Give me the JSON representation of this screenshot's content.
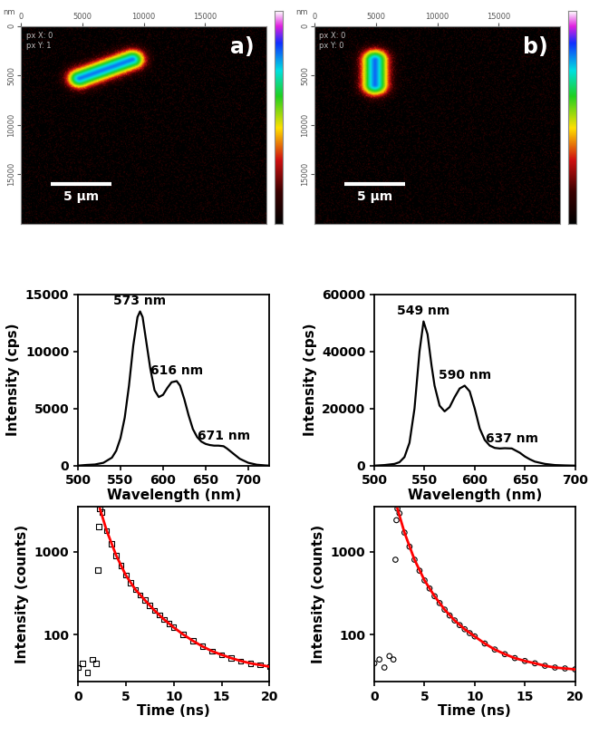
{
  "chart_data": [
    {
      "type": "image",
      "panel_label": "a)",
      "corner_label": "nm",
      "info": [
        "px X: 0",
        "px Y: 1"
      ],
      "xlim": [
        0,
        20000
      ],
      "xticks": [
        0,
        5000,
        10000,
        15000
      ],
      "ylim": [
        20000,
        0
      ],
      "yticks": [
        0,
        5000,
        10000,
        15000
      ],
      "scale_bar": {
        "label": "5 µm",
        "length": 5000
      }
    },
    {
      "type": "image",
      "panel_label": "b)",
      "corner_label": "nm",
      "info": [
        "px X: 0",
        "px Y: 0"
      ],
      "xlim": [
        0,
        20000
      ],
      "xticks": [
        0,
        5000,
        10000,
        15000
      ],
      "ylim": [
        20000,
        0
      ],
      "yticks": [
        0,
        5000,
        10000,
        15000
      ],
      "scale_bar": {
        "label": "5 µm",
        "length": 5000
      }
    },
    {
      "type": "line",
      "x_label": "Wavelength (nm)",
      "y_label": "Intensity (cps)",
      "color": "#000000",
      "x": [
        500,
        510,
        520,
        530,
        540,
        545,
        550,
        555,
        560,
        565,
        570,
        573,
        576,
        580,
        585,
        590,
        595,
        600,
        605,
        610,
        616,
        620,
        625,
        630,
        635,
        640,
        645,
        650,
        655,
        660,
        665,
        671,
        675,
        680,
        685,
        690,
        700,
        710,
        720,
        725
      ],
      "values": [
        0,
        60,
        100,
        250,
        700,
        1300,
        2400,
        4200,
        7000,
        10500,
        13000,
        13500,
        13000,
        11000,
        8500,
        6600,
        6000,
        6200,
        6800,
        7300,
        7400,
        7000,
        5800,
        4400,
        3200,
        2500,
        2100,
        1900,
        1800,
        1750,
        1750,
        1700,
        1500,
        1200,
        900,
        600,
        250,
        80,
        20,
        0
      ],
      "xlim": [
        500,
        725
      ],
      "xticks": [
        500,
        550,
        600,
        650,
        700
      ],
      "ylim": [
        0,
        15000
      ],
      "yticks": [
        0,
        5000,
        10000,
        15000
      ],
      "annotations": [
        {
          "text": "573 nm",
          "x": 573,
          "y": 13500
        },
        {
          "text": "616 nm",
          "x": 616,
          "y": 7400
        },
        {
          "text": "671 nm",
          "x": 671,
          "y": 1700
        }
      ]
    },
    {
      "type": "line",
      "x_label": "Wavelength (nm)",
      "y_label": "Intensity (cps)",
      "color": "#000000",
      "x": [
        500,
        510,
        520,
        525,
        530,
        535,
        540,
        545,
        549,
        553,
        557,
        560,
        565,
        570,
        575,
        580,
        585,
        590,
        595,
        600,
        605,
        610,
        615,
        620,
        625,
        630,
        637,
        645,
        650,
        655,
        660,
        670,
        680,
        690,
        700
      ],
      "values": [
        0,
        200,
        600,
        1200,
        3000,
        8000,
        20000,
        40000,
        50500,
        46000,
        35000,
        28000,
        21000,
        19000,
        20500,
        24000,
        27000,
        28000,
        26000,
        20000,
        13000,
        9000,
        7000,
        6200,
        6000,
        6100,
        6000,
        4500,
        3200,
        2200,
        1400,
        600,
        200,
        80,
        0
      ],
      "xlim": [
        500,
        700
      ],
      "xticks": [
        500,
        550,
        600,
        650,
        700
      ],
      "ylim": [
        0,
        60000
      ],
      "yticks": [
        0,
        20000,
        40000,
        60000
      ],
      "annotations": [
        {
          "text": "549 nm",
          "x": 549,
          "y": 50500
        },
        {
          "text": "590 nm",
          "x": 590,
          "y": 28000
        },
        {
          "text": "637 nm",
          "x": 637,
          "y": 6000
        }
      ]
    },
    {
      "type": "scatter",
      "x_label": "Time (ns)",
      "y_label": "Intensity (counts)",
      "log": "y",
      "xlim": [
        0,
        20
      ],
      "xticks": [
        0,
        5,
        10,
        15,
        20
      ],
      "ylim": [
        27,
        3500
      ],
      "yticks": [
        100,
        1000
      ],
      "series": [
        {
          "type": "scatter",
          "marker": "square",
          "color": "#000000",
          "x": [
            0,
            0.5,
            1,
            1.5,
            1.9,
            2.1,
            2.2,
            2.3,
            2.5,
            3,
            3.5,
            4,
            4.5,
            5,
            5.5,
            6,
            6.5,
            7,
            7.5,
            8,
            8.5,
            9,
            9.5,
            10,
            11,
            12,
            13,
            14,
            15,
            16,
            17,
            18,
            19,
            20
          ],
          "values": [
            40,
            45,
            35,
            50,
            45,
            600,
            2000,
            3300,
            3000,
            1800,
            1250,
            900,
            680,
            520,
            420,
            350,
            300,
            260,
            225,
            195,
            172,
            152,
            136,
            122,
            100,
            84,
            72,
            63,
            57,
            52,
            48,
            45,
            43,
            41
          ]
        },
        {
          "type": "line",
          "line_style": "solid",
          "color": "#ff0000",
          "x": [
            2.3,
            3,
            4,
            5,
            6,
            7,
            8,
            9,
            10,
            11,
            12,
            13,
            14,
            15,
            16,
            17,
            18,
            19,
            20
          ],
          "values": [
            3300,
            1800,
            900,
            520,
            350,
            260,
            195,
            152,
            122,
            100,
            84,
            72,
            63,
            57,
            52,
            48,
            45,
            43,
            41
          ]
        }
      ]
    },
    {
      "type": "scatter",
      "x_label": "Time (ns)",
      "y_label": "Intensity (counts)",
      "log": "y",
      "xlim": [
        0,
        20
      ],
      "xticks": [
        0,
        5,
        10,
        15,
        20
      ],
      "ylim": [
        27,
        3500
      ],
      "yticks": [
        100,
        1000
      ],
      "series": [
        {
          "type": "scatter",
          "marker": "circle",
          "color": "#000000",
          "x": [
            0,
            0.5,
            1,
            1.5,
            1.9,
            2.1,
            2.2,
            2.3,
            2.5,
            3,
            3.5,
            4,
            4.5,
            5,
            5.5,
            6,
            6.5,
            7,
            7.5,
            8,
            8.5,
            9,
            9.5,
            10,
            11,
            12,
            13,
            14,
            15,
            16,
            17,
            18,
            19,
            20
          ],
          "values": [
            45,
            50,
            40,
            55,
            50,
            800,
            2400,
            3300,
            2900,
            1700,
            1150,
            800,
            590,
            450,
            360,
            290,
            240,
            200,
            170,
            148,
            130,
            116,
            104,
            95,
            78,
            66,
            58,
            52,
            48,
            45,
            42,
            40,
            39,
            38
          ]
        },
        {
          "type": "line",
          "line_style": "solid",
          "color": "#ff0000",
          "x": [
            2.3,
            3,
            4,
            5,
            6,
            7,
            8,
            9,
            10,
            11,
            12,
            13,
            14,
            15,
            16,
            17,
            18,
            19,
            20
          ],
          "values": [
            3300,
            1700,
            800,
            450,
            290,
            200,
            148,
            116,
            95,
            78,
            66,
            58,
            52,
            48,
            45,
            42,
            40,
            39,
            38
          ]
        }
      ]
    }
  ]
}
